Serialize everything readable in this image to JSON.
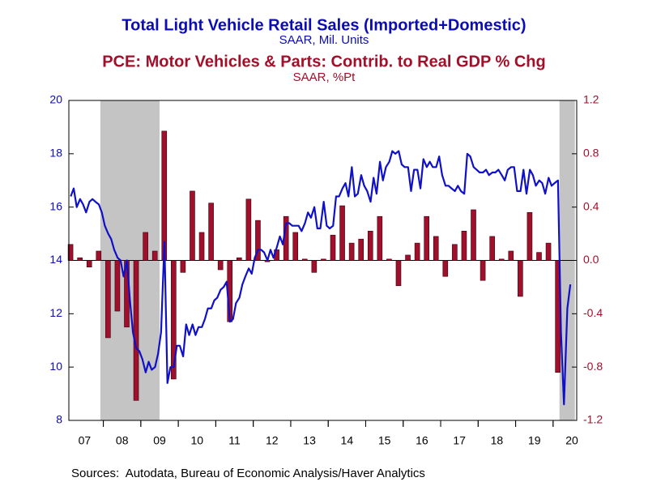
{
  "chart_data": {
    "type": "bar-line",
    "series": [
      {
        "name": "Total Light Vehicle Retail Sales (Imported+Domestic)",
        "unit": "SAAR, Mil. Units",
        "type": "line",
        "axis": "y",
        "color": "#1010c8",
        "x": [
          2007.13,
          2007.21,
          2007.29,
          2007.38,
          2007.46,
          2007.54,
          2007.63,
          2007.71,
          2007.79,
          2007.88,
          2007.96,
          2008.04,
          2008.13,
          2008.21,
          2008.29,
          2008.38,
          2008.46,
          2008.54,
          2008.63,
          2008.71,
          2008.79,
          2008.88,
          2008.96,
          2009.04,
          2009.13,
          2009.21,
          2009.29,
          2009.38,
          2009.46,
          2009.54,
          2009.63,
          2009.71,
          2009.79,
          2009.88,
          2009.96,
          2010.04,
          2010.13,
          2010.21,
          2010.29,
          2010.38,
          2010.46,
          2010.54,
          2010.63,
          2010.71,
          2010.79,
          2010.88,
          2010.96,
          2011.04,
          2011.13,
          2011.21,
          2011.29,
          2011.38,
          2011.46,
          2011.54,
          2011.63,
          2011.71,
          2011.79,
          2011.88,
          2011.96,
          2012.04,
          2012.13,
          2012.21,
          2012.29,
          2012.38,
          2012.46,
          2012.54,
          2012.63,
          2012.71,
          2012.79,
          2012.88,
          2012.96,
          2013.04,
          2013.13,
          2013.21,
          2013.29,
          2013.38,
          2013.46,
          2013.54,
          2013.63,
          2013.71,
          2013.79,
          2013.88,
          2013.96,
          2014.04,
          2014.13,
          2014.21,
          2014.29,
          2014.38,
          2014.46,
          2014.54,
          2014.63,
          2014.71,
          2014.79,
          2014.88,
          2014.96,
          2015.04,
          2015.13,
          2015.21,
          2015.29,
          2015.38,
          2015.46,
          2015.54,
          2015.63,
          2015.71,
          2015.79,
          2015.88,
          2015.96,
          2016.04,
          2016.13,
          2016.21,
          2016.29,
          2016.38,
          2016.46,
          2016.54,
          2016.63,
          2016.71,
          2016.79,
          2016.88,
          2016.96,
          2017.04,
          2017.13,
          2017.21,
          2017.29,
          2017.38,
          2017.46,
          2017.54,
          2017.63,
          2017.71,
          2017.79,
          2017.88,
          2017.96,
          2018.04,
          2018.13,
          2018.21,
          2018.29,
          2018.38,
          2018.46,
          2018.54,
          2018.63,
          2018.71,
          2018.79,
          2018.88,
          2018.96,
          2019.04,
          2019.13,
          2019.21,
          2019.29,
          2019.38,
          2019.46,
          2019.54,
          2019.63,
          2019.71,
          2019.79,
          2019.88,
          2019.96,
          2020.04,
          2020.13,
          2020.21,
          2020.29,
          2020.38,
          2020.46
        ],
        "values": [
          16.4,
          16.7,
          16.0,
          16.3,
          16.1,
          15.8,
          16.2,
          16.3,
          16.2,
          16.1,
          15.8,
          15.3,
          15.0,
          14.8,
          14.4,
          14.1,
          14.0,
          13.4,
          14.0,
          12.5,
          11.3,
          10.7,
          10.6,
          10.3,
          9.8,
          10.2,
          9.9,
          10.0,
          10.5,
          11.3,
          14.7,
          9.4,
          10.0,
          10.0,
          10.8,
          10.8,
          10.4,
          11.6,
          11.2,
          11.6,
          11.2,
          11.5,
          11.5,
          11.8,
          12.2,
          12.2,
          12.5,
          12.6,
          12.9,
          13.0,
          13.2,
          11.7,
          11.8,
          12.4,
          12.6,
          13.1,
          13.4,
          13.7,
          13.5,
          14.1,
          14.4,
          14.4,
          14.3,
          14.0,
          14.4,
          14.1,
          14.5,
          14.9,
          14.6,
          15.4,
          15.4,
          15.3,
          15.3,
          15.3,
          15.1,
          15.4,
          15.8,
          15.6,
          16.0,
          15.2,
          15.2,
          16.2,
          15.3,
          15.2,
          15.3,
          16.4,
          16.4,
          16.7,
          16.9,
          16.4,
          17.5,
          16.4,
          16.5,
          17.2,
          16.8,
          16.6,
          16.2,
          17.1,
          16.5,
          17.7,
          17.0,
          17.5,
          17.7,
          18.1,
          18.0,
          18.1,
          17.6,
          17.5,
          17.5,
          16.6,
          17.4,
          17.4,
          16.7,
          17.8,
          17.5,
          17.7,
          17.5,
          17.5,
          17.9,
          17.2,
          16.8,
          16.8,
          16.7,
          16.6,
          16.8,
          16.6,
          16.5,
          18.0,
          17.9,
          17.5,
          17.4,
          17.3,
          17.3,
          17.4,
          17.2,
          17.3,
          17.3,
          17.4,
          17.2,
          17.0,
          17.4,
          17.5,
          17.5,
          16.6,
          16.6,
          17.4,
          16.5,
          17.4,
          17.2,
          16.8,
          17.0,
          16.9,
          16.5,
          17.1,
          16.8,
          16.9,
          17.0,
          11.3,
          8.6,
          12.2,
          13.1
        ]
      },
      {
        "name": "PCE: Motor Vehicles & Parts: Contrib. to Real GDP % Chg",
        "unit": "SAAR, %Pt",
        "type": "bar",
        "axis": "y2",
        "color": "#a0102a",
        "x": [
          2007.125,
          2007.375,
          2007.625,
          2007.875,
          2008.125,
          2008.375,
          2008.625,
          2008.875,
          2009.125,
          2009.375,
          2009.625,
          2009.875,
          2010.125,
          2010.375,
          2010.625,
          2010.875,
          2011.125,
          2011.375,
          2011.625,
          2011.875,
          2012.125,
          2012.375,
          2012.625,
          2012.875,
          2013.125,
          2013.375,
          2013.625,
          2013.875,
          2014.125,
          2014.375,
          2014.625,
          2014.875,
          2015.125,
          2015.375,
          2015.625,
          2015.875,
          2016.125,
          2016.375,
          2016.625,
          2016.875,
          2017.125,
          2017.375,
          2017.625,
          2017.875,
          2018.125,
          2018.375,
          2018.625,
          2018.875,
          2019.125,
          2019.375,
          2019.625,
          2019.875,
          2020.125
        ],
        "values": [
          0.12,
          0.02,
          -0.05,
          0.07,
          -0.58,
          -0.38,
          -0.5,
          -1.05,
          0.21,
          0.07,
          0.97,
          -0.89,
          -0.09,
          0.52,
          0.21,
          0.43,
          -0.07,
          -0.46,
          0.02,
          0.46,
          0.3,
          -0.01,
          0.08,
          0.33,
          0.21,
          0.01,
          -0.09,
          0.01,
          0.19,
          0.41,
          0.13,
          0.16,
          0.22,
          0.33,
          0.01,
          -0.19,
          0.04,
          0.13,
          0.33,
          0.18,
          -0.12,
          0.12,
          0.22,
          0.38,
          -0.15,
          0.18,
          0.01,
          0.07,
          -0.27,
          0.36,
          0.06,
          0.13,
          -0.84
        ]
      }
    ],
    "shading": [
      [
        2007.92,
        2009.5
      ],
      [
        2020.17,
        2020.58
      ]
    ],
    "xlim": [
      2007.08,
      2020.63
    ],
    "xticks": [
      {
        "value": 2007.5,
        "label": "07"
      },
      {
        "value": 2008.5,
        "label": "08"
      },
      {
        "value": 2009.5,
        "label": "09"
      },
      {
        "value": 2010.5,
        "label": "10"
      },
      {
        "value": 2011.5,
        "label": "11"
      },
      {
        "value": 2012.5,
        "label": "12"
      },
      {
        "value": 2013.5,
        "label": "13"
      },
      {
        "value": 2014.5,
        "label": "14"
      },
      {
        "value": 2015.5,
        "label": "15"
      },
      {
        "value": 2016.5,
        "label": "16"
      },
      {
        "value": 2017.5,
        "label": "17"
      },
      {
        "value": 2018.5,
        "label": "18"
      },
      {
        "value": 2019.5,
        "label": "19"
      },
      {
        "value": 2020.5,
        "label": "20"
      }
    ],
    "ylim": [
      8,
      20
    ],
    "yticks": [
      8,
      10,
      12,
      14,
      16,
      18,
      20
    ],
    "y2lim": [
      -1.2,
      1.2
    ],
    "y2ticks": [
      -1.2,
      -0.8,
      -0.4,
      {
        "value": 0,
        "label": "0.0"
      },
      0.4,
      0.8,
      1.2
    ],
    "grid": false,
    "source": "Sources:  Autodata, Bureau of Economic Analysis/Haver Analytics"
  }
}
